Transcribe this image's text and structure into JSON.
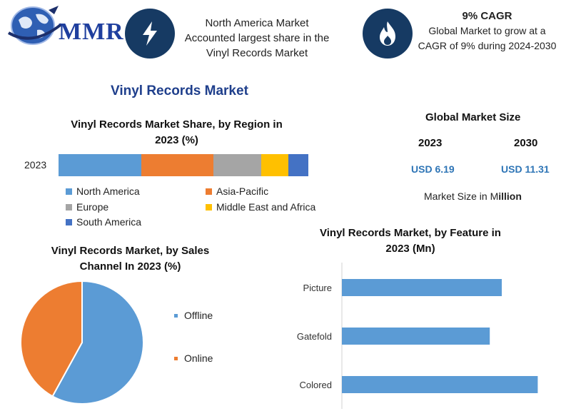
{
  "header": {
    "logo_text": "MMR",
    "region_note": [
      "North America Market",
      "Accounted largest share in the",
      "Vinyl Records Market"
    ],
    "cagr_title": "9% CAGR",
    "cagr_note": [
      "Global Market to grow at a",
      "CAGR of 9% during 2024-2030"
    ],
    "icons": [
      "globe-icon",
      "lightning-icon",
      "flame-icon"
    ],
    "icon_color": "#163a63"
  },
  "main_title": "Vinyl Records Market",
  "region_section": {
    "title_line1": "Vinyl Records Market Share, by Region in",
    "title_line2": "2023 (%)",
    "row_label": "2023"
  },
  "global_market": {
    "title": "Global Market Size",
    "year_a": "2023",
    "year_b": "2030",
    "value_a": "USD 6.19",
    "value_b": "USD 11.31",
    "note_prefix": "Market Size in M",
    "note_suffix": "illion"
  },
  "sales_section": {
    "title_line1": "Vinyl Records Market, by Sales",
    "title_line2": "Channel In 2023 (%)"
  },
  "feature_section": {
    "title_line1": "Vinyl Records Market, by Feature in",
    "title_line2": "2023 (Mn)"
  },
  "chart_data": [
    {
      "type": "bar",
      "orientation": "horizontal-stacked",
      "title": "Vinyl Records Market Share, by Region in 2023 (%)",
      "categories": [
        "2023"
      ],
      "series": [
        {
          "name": "North America",
          "values": [
            33
          ],
          "color": "#5b9bd5"
        },
        {
          "name": "Asia-Pacific",
          "values": [
            29
          ],
          "color": "#ed7d31"
        },
        {
          "name": "Europe",
          "values": [
            19
          ],
          "color": "#a5a5a5"
        },
        {
          "name": "Middle East and Africa",
          "values": [
            11
          ],
          "color": "#ffc000"
        },
        {
          "name": "South America",
          "values": [
            8
          ],
          "color": "#4472c4"
        }
      ],
      "legend": "bottom"
    },
    {
      "type": "pie",
      "title": "Vinyl Records Market, by Sales Channel In 2023 (%)",
      "slices": [
        {
          "name": "Offline",
          "value": 58,
          "color": "#5b9bd5"
        },
        {
          "name": "Online",
          "value": 42,
          "color": "#ed7d31"
        }
      ],
      "legend": "right"
    },
    {
      "type": "bar",
      "orientation": "horizontal",
      "title": "Vinyl Records Market, by Feature in 2023 (Mn)",
      "categories": [
        "Picture",
        "Gatefold",
        "Colored"
      ],
      "values": [
        2.0,
        1.85,
        2.45
      ],
      "xlim": [
        0,
        2.5
      ],
      "color": "#5b9bd5"
    }
  ]
}
